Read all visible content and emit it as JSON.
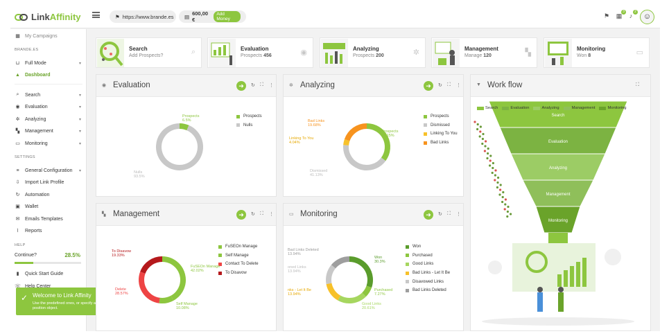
{
  "app": {
    "brand_prefix": "Link",
    "brand_suffix": "Affinity"
  },
  "topbar": {
    "url": "https://www.brande.es",
    "balance": "600,00 €",
    "add_money": "Add Money",
    "badges": [
      "3",
      "2"
    ]
  },
  "sidebar": {
    "my_campaigns": "My Campaigns",
    "section_site": "BRANDE.ES",
    "full_mode": "Full Mode",
    "dashboard": "Dashboard",
    "search": "Search",
    "evaluation": "Evaluation",
    "analyzing": "Analyzing",
    "management": "Management",
    "monitoring": "Monitoring",
    "section_settings": "SETTINGS",
    "general_configuration": "General Configuration",
    "import_link_profile": "Import Link Profile",
    "automation": "Automation",
    "wallet": "Wallet",
    "emails_templates": "Emails Templates",
    "reports": "Reports",
    "section_help": "HELP",
    "continue_label": "Continue?",
    "continue_value": "28.5%",
    "continue_fraction": 0.285,
    "quick_start": "Quick Start Guide",
    "help_center": "Help Center"
  },
  "toast": {
    "title": "Welcome to Link Affinity",
    "body": "Use the predefined ones, or specify a custom position object."
  },
  "cards": [
    {
      "title": "Search",
      "sub": "Add Prospects?"
    },
    {
      "title": "Evaluation",
      "sub_label": "Prospects",
      "sub_value": "456"
    },
    {
      "title": "Analyzing",
      "sub_label": "Prospects",
      "sub_value": "200"
    },
    {
      "title": "Management",
      "sub_label": "Manage",
      "sub_value": "120"
    },
    {
      "title": "Monitoring",
      "sub_label": "Won",
      "sub_value": "8"
    }
  ],
  "panels": {
    "evaluation": "Evaluation",
    "analyzing": "Analyzing",
    "workflow": "Work flow",
    "management": "Management",
    "monitoring": "Monitoring"
  },
  "chart_data": [
    {
      "type": "pie",
      "title": "Evaluation",
      "labels": [
        "Prospects",
        "Nulls"
      ],
      "values": [
        6.5,
        93.5
      ],
      "colors": [
        "#8dc63f",
        "#c8c8c8"
      ],
      "value_labels": [
        "6.5%",
        "93.5%"
      ]
    },
    {
      "type": "pie",
      "title": "Analyzing",
      "labels": [
        "Prospects",
        "Dismissed",
        "Linking To You",
        "Bad Links"
      ],
      "values": [
        35.15,
        41.13,
        4.04,
        19.68
      ],
      "colors": [
        "#8dc63f",
        "#c8c8c8",
        "#f7c12a",
        "#f7931e"
      ],
      "value_labels": [
        "35.15%",
        "41.13%",
        "4.04%",
        "19.68%"
      ]
    },
    {
      "type": "pie",
      "title": "Management",
      "labels": [
        "FuSEOn Manage",
        "Self Manage",
        "Contact To Delete",
        "To Disavow"
      ],
      "values": [
        42.02,
        10.08,
        28.57,
        19.33
      ],
      "colors": [
        "#8dc63f",
        "#8dc63f",
        "#ee4444",
        "#b5191c"
      ],
      "value_labels": [
        "42.02%",
        "10.08%",
        "28.57%",
        "19.33%"
      ],
      "label_names": [
        "FuSEOn Manage",
        "Self Manage",
        "Delete",
        "To Disavow"
      ]
    },
    {
      "type": "pie",
      "title": "Monitoring",
      "labels": [
        "Won",
        "Purchased",
        "Good Links",
        "Bad Links - Let It Be",
        "Disavowed Links",
        "Bad Links Deleted"
      ],
      "values": [
        30.3,
        7.27,
        20.61,
        13.94,
        13.94,
        13.94
      ],
      "colors": [
        "#5a9c2c",
        "#8dc63f",
        "#a6d65f",
        "#f7c12a",
        "#c8c8c8",
        "#9e9e9e"
      ],
      "value_labels": [
        "30.3%",
        "7.27%",
        "20.61%",
        "13.94%",
        "13.94%",
        "13.94%"
      ],
      "label_names": [
        "Won",
        "Purchased",
        "Good Links",
        "nks - Let It Be",
        "oned Links",
        "Bad Links Deleted"
      ]
    },
    {
      "type": "bar",
      "title": "Work flow",
      "categories": [
        "Search",
        "Evaluation",
        "Analyzing",
        "Management",
        "Monitoring"
      ],
      "colors": [
        "#8dc63f",
        "#7cb342",
        "#9ccc65",
        "#8fbf5a",
        "#6aa32a"
      ]
    }
  ]
}
